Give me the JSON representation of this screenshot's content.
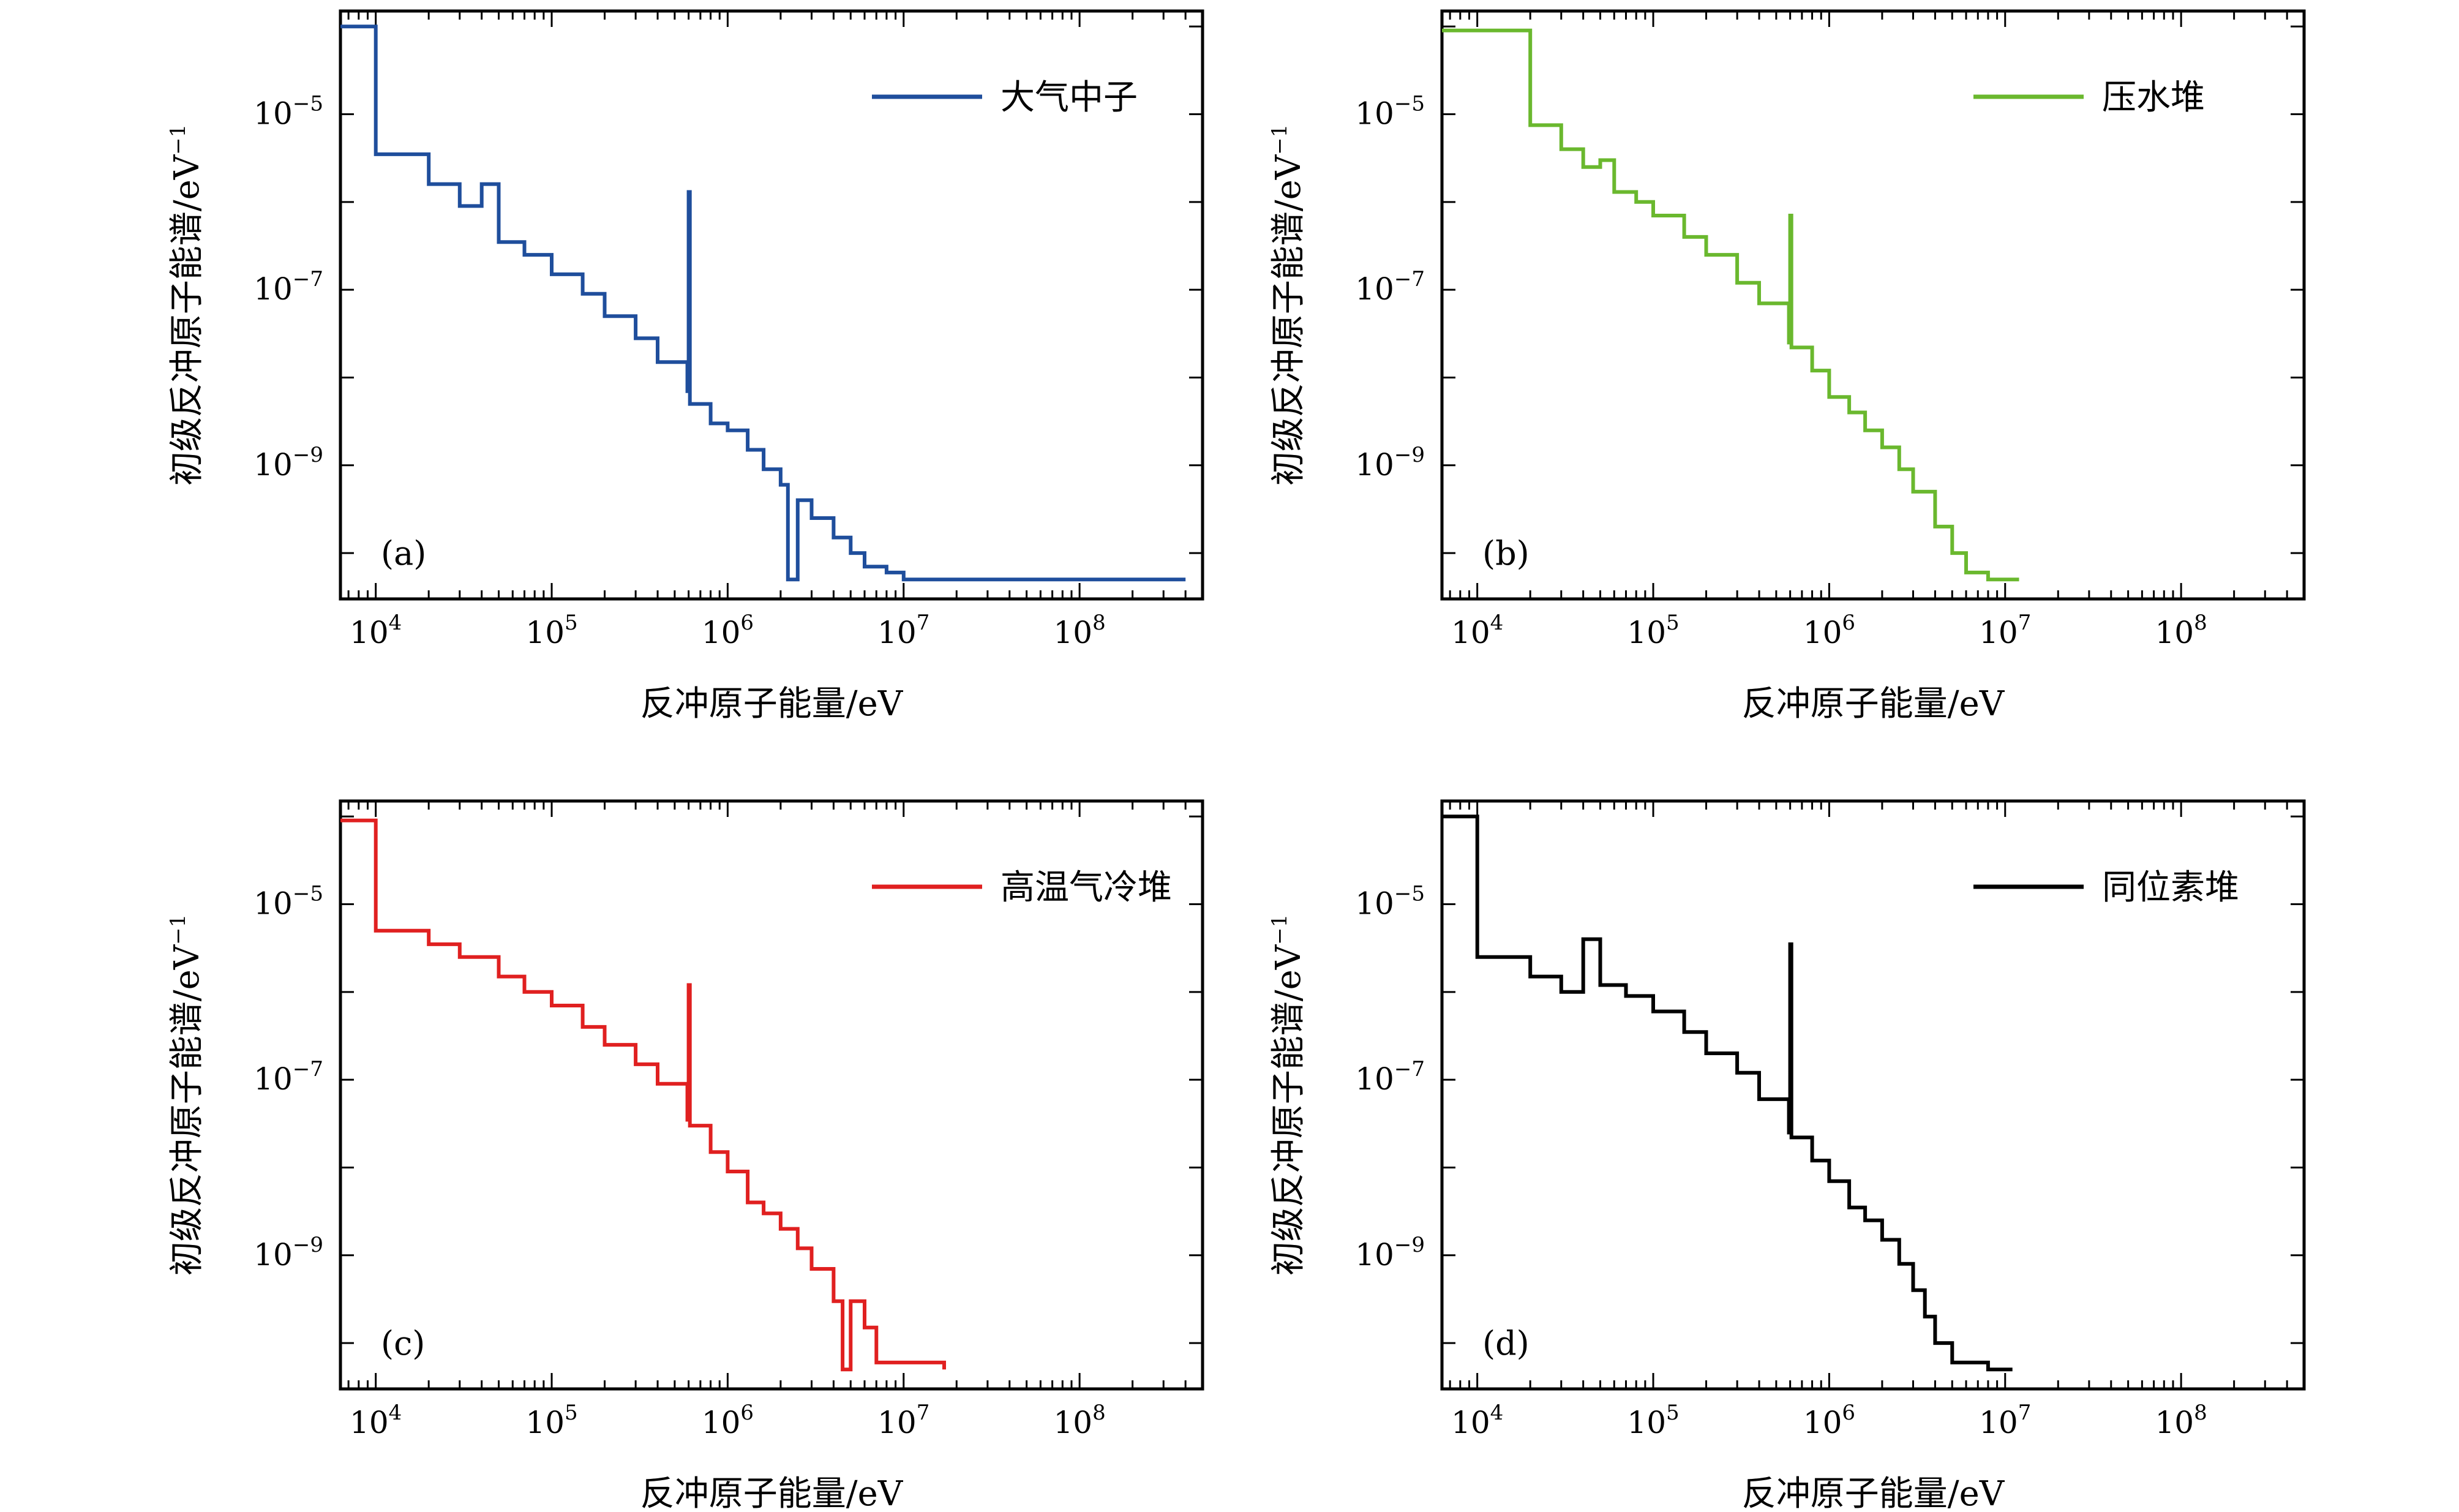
{
  "figure": {
    "background": "#ffffff",
    "axis_color": "#000000"
  },
  "chart_data": [
    {
      "type": "line",
      "panel_label": "(a)",
      "series": [
        {
          "name": "大气中子",
          "color": "#1f4e9c",
          "x": [
            6300,
            10000,
            10000,
            20000,
            20000,
            30000,
            30000,
            40000,
            40000,
            50000,
            50000,
            70000,
            100000,
            150000,
            200000,
            300000,
            400000,
            590000,
            600000,
            600000,
            610000,
            800000,
            1000000,
            1300000,
            1600000,
            2000000,
            2200000,
            2500000,
            3000000,
            4000000,
            5000000,
            6000000,
            8000000,
            10000000,
            10000000,
            400000000
          ],
          "y": [
            0.0001,
            0.0001,
            3.5e-06,
            3.5e-06,
            1.6e-06,
            1.6e-06,
            9e-07,
            9e-07,
            1.6e-06,
            1.6e-06,
            3.5e-07,
            2.5e-07,
            1.5e-07,
            9e-08,
            5e-08,
            2.8e-08,
            1.5e-08,
            7e-09,
            1.3e-06,
            1.3e-06,
            5e-09,
            3e-09,
            2.5e-09,
            1.5e-09,
            9e-10,
            6e-10,
            5e-11,
            4e-10,
            2.5e-10,
            1.5e-10,
            1e-10,
            7e-11,
            6e-11,
            5e-11,
            5e-11,
            5e-11
          ]
        }
      ],
      "xlabel": "反冲原子能量/eV",
      "ylabel": "初级反冲原子能谱/eV",
      "ylabel_unit_exponent": "−1",
      "xscale": "log",
      "yscale": "log",
      "xlim": [
        6300,
        500000000
      ],
      "ylim": [
        3e-11,
        0.00015
      ],
      "xticks": [
        {
          "base": "10",
          "exp": "4",
          "value": 10000
        },
        {
          "base": "10",
          "exp": "5",
          "value": 100000
        },
        {
          "base": "10",
          "exp": "6",
          "value": 1000000
        },
        {
          "base": "10",
          "exp": "7",
          "value": 10000000
        },
        {
          "base": "10",
          "exp": "8",
          "value": 100000000
        }
      ],
      "yticks": [
        {
          "base": "10",
          "exp": "−5",
          "value": 1e-05
        },
        {
          "base": "10",
          "exp": "−7",
          "value": 1e-07
        },
        {
          "base": "10",
          "exp": "−9",
          "value": 1e-09
        }
      ],
      "legend_position": "top-right",
      "grid": false
    },
    {
      "type": "line",
      "panel_label": "(b)",
      "series": [
        {
          "name": "压水堆",
          "color": "#6ab82e",
          "x": [
            6300,
            20000,
            20000,
            30000,
            30000,
            40000,
            40000,
            50000,
            50000,
            60000,
            60000,
            80000,
            100000,
            150000,
            200000,
            300000,
            400000,
            590000,
            600000,
            600000,
            610000,
            800000,
            1000000,
            1300000,
            1600000,
            2000000,
            2500000,
            3000000,
            4000000,
            5000000,
            6000000,
            8000000,
            12000000
          ],
          "y": [
            9e-05,
            9e-05,
            7.5e-06,
            7.5e-06,
            4e-06,
            4e-06,
            2.5e-06,
            2.5e-06,
            3e-06,
            3e-06,
            1.3e-06,
            1e-06,
            7e-07,
            4e-07,
            2.5e-07,
            1.2e-07,
            7e-08,
            2.5e-08,
            7e-07,
            7e-07,
            2.2e-08,
            1.2e-08,
            6e-09,
            4e-09,
            2.5e-09,
            1.6e-09,
            9e-10,
            5e-10,
            2e-10,
            1e-10,
            6e-11,
            5e-11,
            5e-11
          ]
        }
      ],
      "xlabel": "反冲原子能量/eV",
      "ylabel": "初级反冲原子能谱/eV",
      "ylabel_unit_exponent": "−1",
      "xscale": "log",
      "yscale": "log",
      "xlim": [
        6300,
        500000000
      ],
      "ylim": [
        3e-11,
        0.00015
      ],
      "xticks": [
        {
          "base": "10",
          "exp": "4",
          "value": 10000
        },
        {
          "base": "10",
          "exp": "5",
          "value": 100000
        },
        {
          "base": "10",
          "exp": "6",
          "value": 1000000
        },
        {
          "base": "10",
          "exp": "7",
          "value": 10000000
        },
        {
          "base": "10",
          "exp": "8",
          "value": 100000000
        }
      ],
      "yticks": [
        {
          "base": "10",
          "exp": "−5",
          "value": 1e-05
        },
        {
          "base": "10",
          "exp": "−7",
          "value": 1e-07
        },
        {
          "base": "10",
          "exp": "−9",
          "value": 1e-09
        }
      ],
      "legend_position": "top-right",
      "grid": false
    },
    {
      "type": "line",
      "panel_label": "(c)",
      "series": [
        {
          "name": "高温气冷堆",
          "color": "#e02020",
          "x": [
            6300,
            10000,
            10000,
            20000,
            20000,
            30000,
            30000,
            50000,
            50000,
            70000,
            100000,
            150000,
            200000,
            300000,
            400000,
            590000,
            600000,
            600000,
            610000,
            800000,
            1000000,
            1300000,
            1600000,
            2000000,
            2500000,
            3000000,
            4000000,
            4500000,
            5000000,
            6000000,
            7000000,
            17000000
          ],
          "y": [
            9e-05,
            9e-05,
            5e-06,
            5e-06,
            3.5e-06,
            3.5e-06,
            2.5e-06,
            2.5e-06,
            1.5e-06,
            1e-06,
            7e-07,
            4e-07,
            2.5e-07,
            1.5e-07,
            9e-08,
            3.5e-08,
            1.2e-06,
            1.2e-06,
            3e-08,
            1.5e-08,
            9e-09,
            4e-09,
            3e-09,
            2e-09,
            1.2e-09,
            7e-10,
            3e-10,
            5e-11,
            3e-10,
            1.5e-10,
            6e-11,
            5e-11
          ]
        }
      ],
      "xlabel": "反冲原子能量/eV",
      "ylabel": "初级反冲原子能谱/eV",
      "ylabel_unit_exponent": "−1",
      "xscale": "log",
      "yscale": "log",
      "xlim": [
        6300,
        500000000
      ],
      "ylim": [
        3e-11,
        0.00015
      ],
      "xticks": [
        {
          "base": "10",
          "exp": "4",
          "value": 10000
        },
        {
          "base": "10",
          "exp": "5",
          "value": 100000
        },
        {
          "base": "10",
          "exp": "6",
          "value": 1000000
        },
        {
          "base": "10",
          "exp": "7",
          "value": 10000000
        },
        {
          "base": "10",
          "exp": "8",
          "value": 100000000
        }
      ],
      "yticks": [
        {
          "base": "10",
          "exp": "−5",
          "value": 1e-05
        },
        {
          "base": "10",
          "exp": "−7",
          "value": 1e-07
        },
        {
          "base": "10",
          "exp": "−9",
          "value": 1e-09
        }
      ],
      "legend_position": "top-right",
      "grid": false
    },
    {
      "type": "line",
      "panel_label": "(d)",
      "series": [
        {
          "name": "同位素堆",
          "color": "#000000",
          "x": [
            6300,
            10000,
            10000,
            20000,
            20000,
            30000,
            30000,
            40000,
            40000,
            50000,
            50000,
            70000,
            100000,
            150000,
            200000,
            300000,
            400000,
            590000,
            600000,
            600000,
            610000,
            800000,
            1000000,
            1300000,
            1600000,
            2000000,
            2500000,
            3000000,
            3500000,
            4000000,
            5000000,
            6000000,
            8000000,
            11000000
          ],
          "y": [
            0.0001,
            0.0001,
            2.5e-06,
            2.5e-06,
            1.5e-06,
            1.5e-06,
            1e-06,
            1e-06,
            4e-06,
            4e-06,
            1.2e-06,
            9e-07,
            6e-07,
            3.5e-07,
            2e-07,
            1.2e-07,
            6e-08,
            2.5e-08,
            3.5e-06,
            3.5e-06,
            2.2e-08,
            1.2e-08,
            7e-09,
            3.5e-09,
            2.5e-09,
            1.5e-09,
            8e-10,
            4e-10,
            2e-10,
            1e-10,
            6e-11,
            6e-11,
            5e-11,
            5e-11
          ]
        }
      ],
      "xlabel": "反冲原子能量/eV",
      "ylabel": "初级反冲原子能谱/eV",
      "ylabel_unit_exponent": "−1",
      "xscale": "log",
      "yscale": "log",
      "xlim": [
        6300,
        500000000
      ],
      "ylim": [
        3e-11,
        0.00015
      ],
      "xticks": [
        {
          "base": "10",
          "exp": "4",
          "value": 10000
        },
        {
          "base": "10",
          "exp": "5",
          "value": 100000
        },
        {
          "base": "10",
          "exp": "6",
          "value": 1000000
        },
        {
          "base": "10",
          "exp": "7",
          "value": 10000000
        },
        {
          "base": "10",
          "exp": "8",
          "value": 100000000
        }
      ],
      "yticks": [
        {
          "base": "10",
          "exp": "−5",
          "value": 1e-05
        },
        {
          "base": "10",
          "exp": "−7",
          "value": 1e-07
        },
        {
          "base": "10",
          "exp": "−9",
          "value": 1e-09
        }
      ],
      "legend_position": "top-right",
      "grid": false
    }
  ]
}
